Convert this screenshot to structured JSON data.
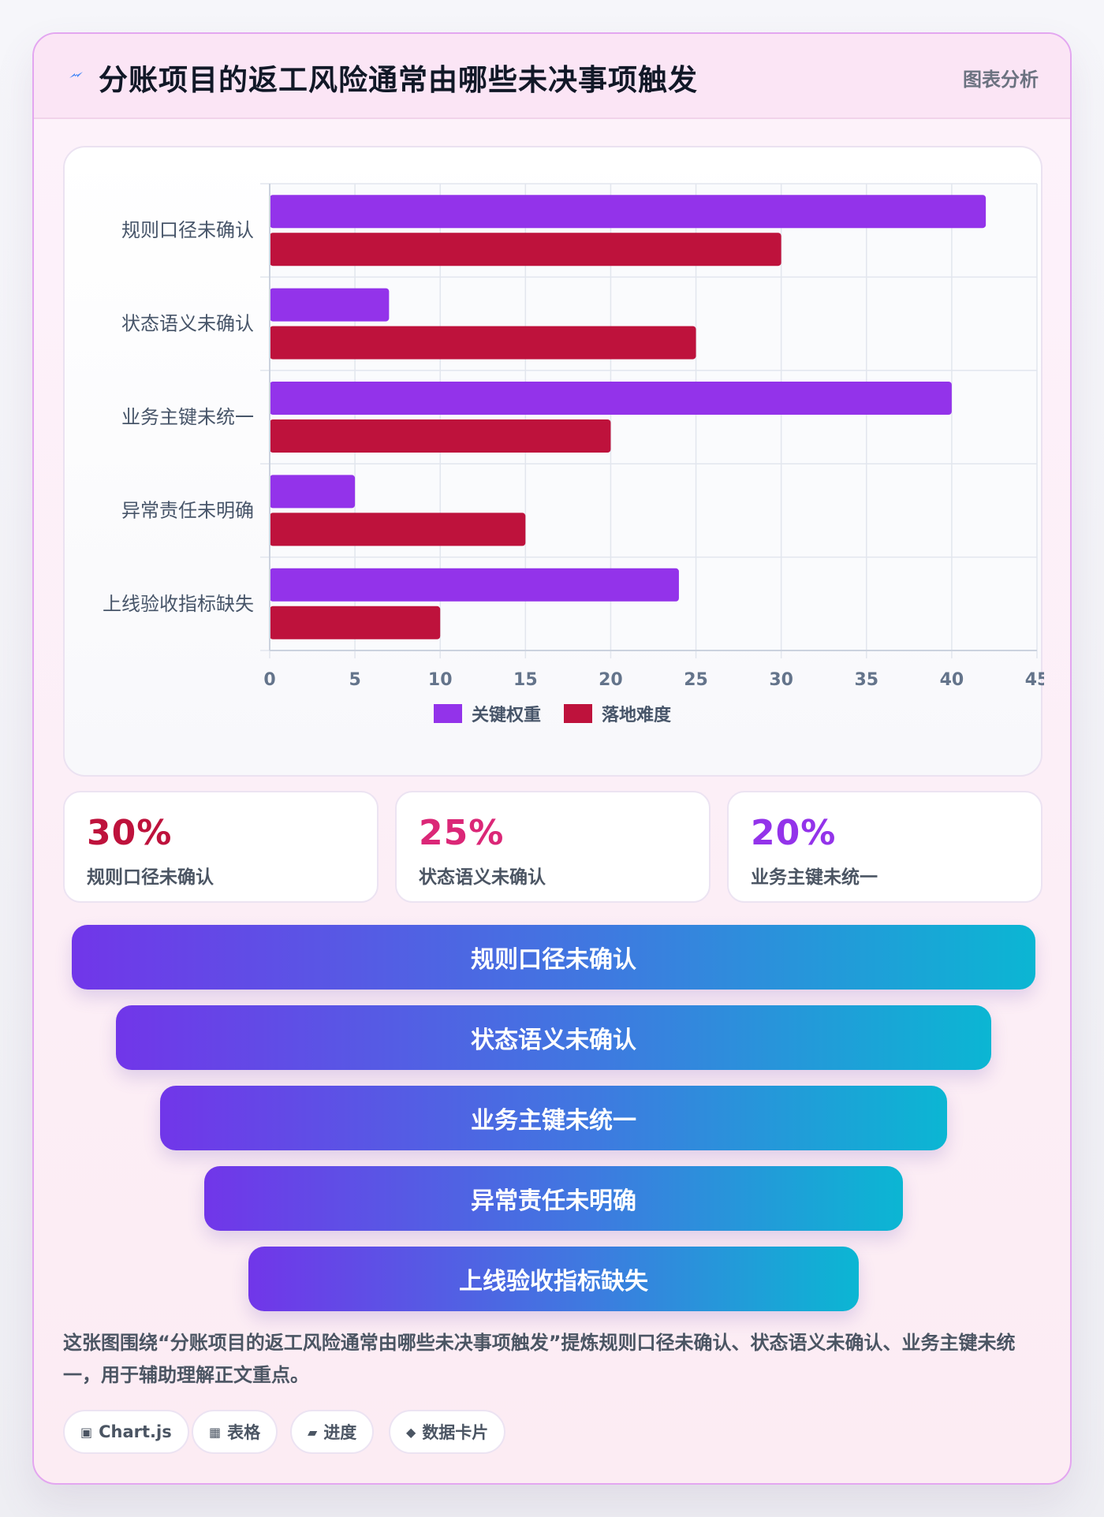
{
  "header": {
    "icon": "lightning-icon",
    "title": "分账项目的返工风险通常由哪些未决事项触发",
    "tag": "图表分析"
  },
  "chart_data": {
    "type": "bar",
    "orientation": "horizontal",
    "categories": [
      "规则口径未确认",
      "状态语义未确认",
      "业务主键未统一",
      "异常责任未明确",
      "上线验收指标缺失"
    ],
    "series": [
      {
        "name": "关键权重",
        "values": [
          42,
          7,
          40,
          5,
          24
        ],
        "color": "#9333ea"
      },
      {
        "name": "落地难度",
        "values": [
          30,
          25,
          20,
          15,
          10
        ],
        "color": "#be123c"
      }
    ],
    "xlim": [
      0,
      45
    ],
    "xticks": [
      0,
      5,
      10,
      15,
      20,
      25,
      30,
      35,
      40,
      45
    ],
    "grid": true,
    "legend": "bottom"
  },
  "stats": [
    {
      "value": "30%",
      "label": "规则口径未确认",
      "color": "#be123c"
    },
    {
      "value": "25%",
      "label": "状态语义未确认",
      "color": "#db2777"
    },
    {
      "value": "20%",
      "label": "业务主键未统一",
      "color": "#9333ea"
    }
  ],
  "funnel": [
    "规则口径未确认",
    "状态语义未确认",
    "业务主键未统一",
    "异常责任未明确",
    "上线验收指标缺失"
  ],
  "summary": "这张图围绕“分账项目的返工风险通常由哪些未决事项触发”提炼规则口径未确认、状态语义未确认、业务主键未统一，用于辅助理解正文重点。",
  "chips": [
    {
      "icon": "chart-icon",
      "glyph": "▣",
      "label": "Chart.js"
    },
    {
      "icon": "table-icon",
      "glyph": "▦",
      "label": "表格"
    },
    {
      "icon": "progress-icon",
      "glyph": "▰",
      "label": "进度"
    },
    {
      "icon": "diamond-icon",
      "glyph": "◆",
      "label": "数据卡片"
    }
  ]
}
